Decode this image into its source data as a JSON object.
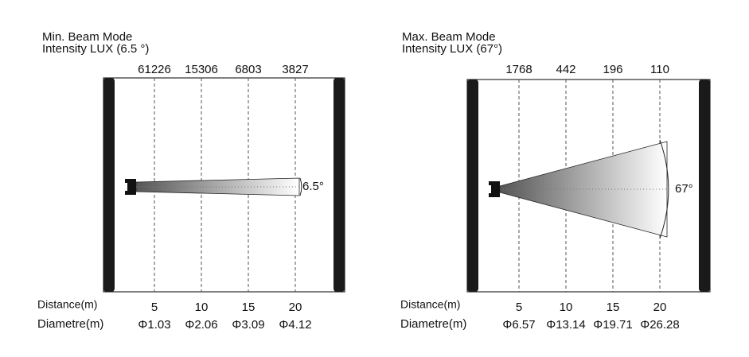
{
  "panels": [
    {
      "title": "Min. Beam Mode",
      "subtitle": "Intensity LUX (6.5 °)",
      "lux": [
        "61226",
        "15306",
        "6803",
        "3827"
      ],
      "angle": "6.5°",
      "distance_label": "Distance(m)",
      "distances": [
        "5",
        "10",
        "15",
        "20"
      ],
      "diameter_label": "Diametre(m)",
      "diameters": [
        "Φ1.03",
        "Φ2.06",
        "Φ3.09",
        "Φ4.12"
      ]
    },
    {
      "title": "Max. Beam Mode",
      "subtitle": "Intensity LUX (67°)",
      "lux": [
        "1768",
        "442",
        "196",
        "110"
      ],
      "angle": "67°",
      "distance_label": "Distance(m)",
      "distances": [
        "5",
        "10",
        "15",
        "20"
      ],
      "diameter_label": "Diametre(m)",
      "diameters": [
        "Φ6.57",
        "Φ13.14",
        "Φ19.71",
        "Φ26.28"
      ]
    }
  ]
}
